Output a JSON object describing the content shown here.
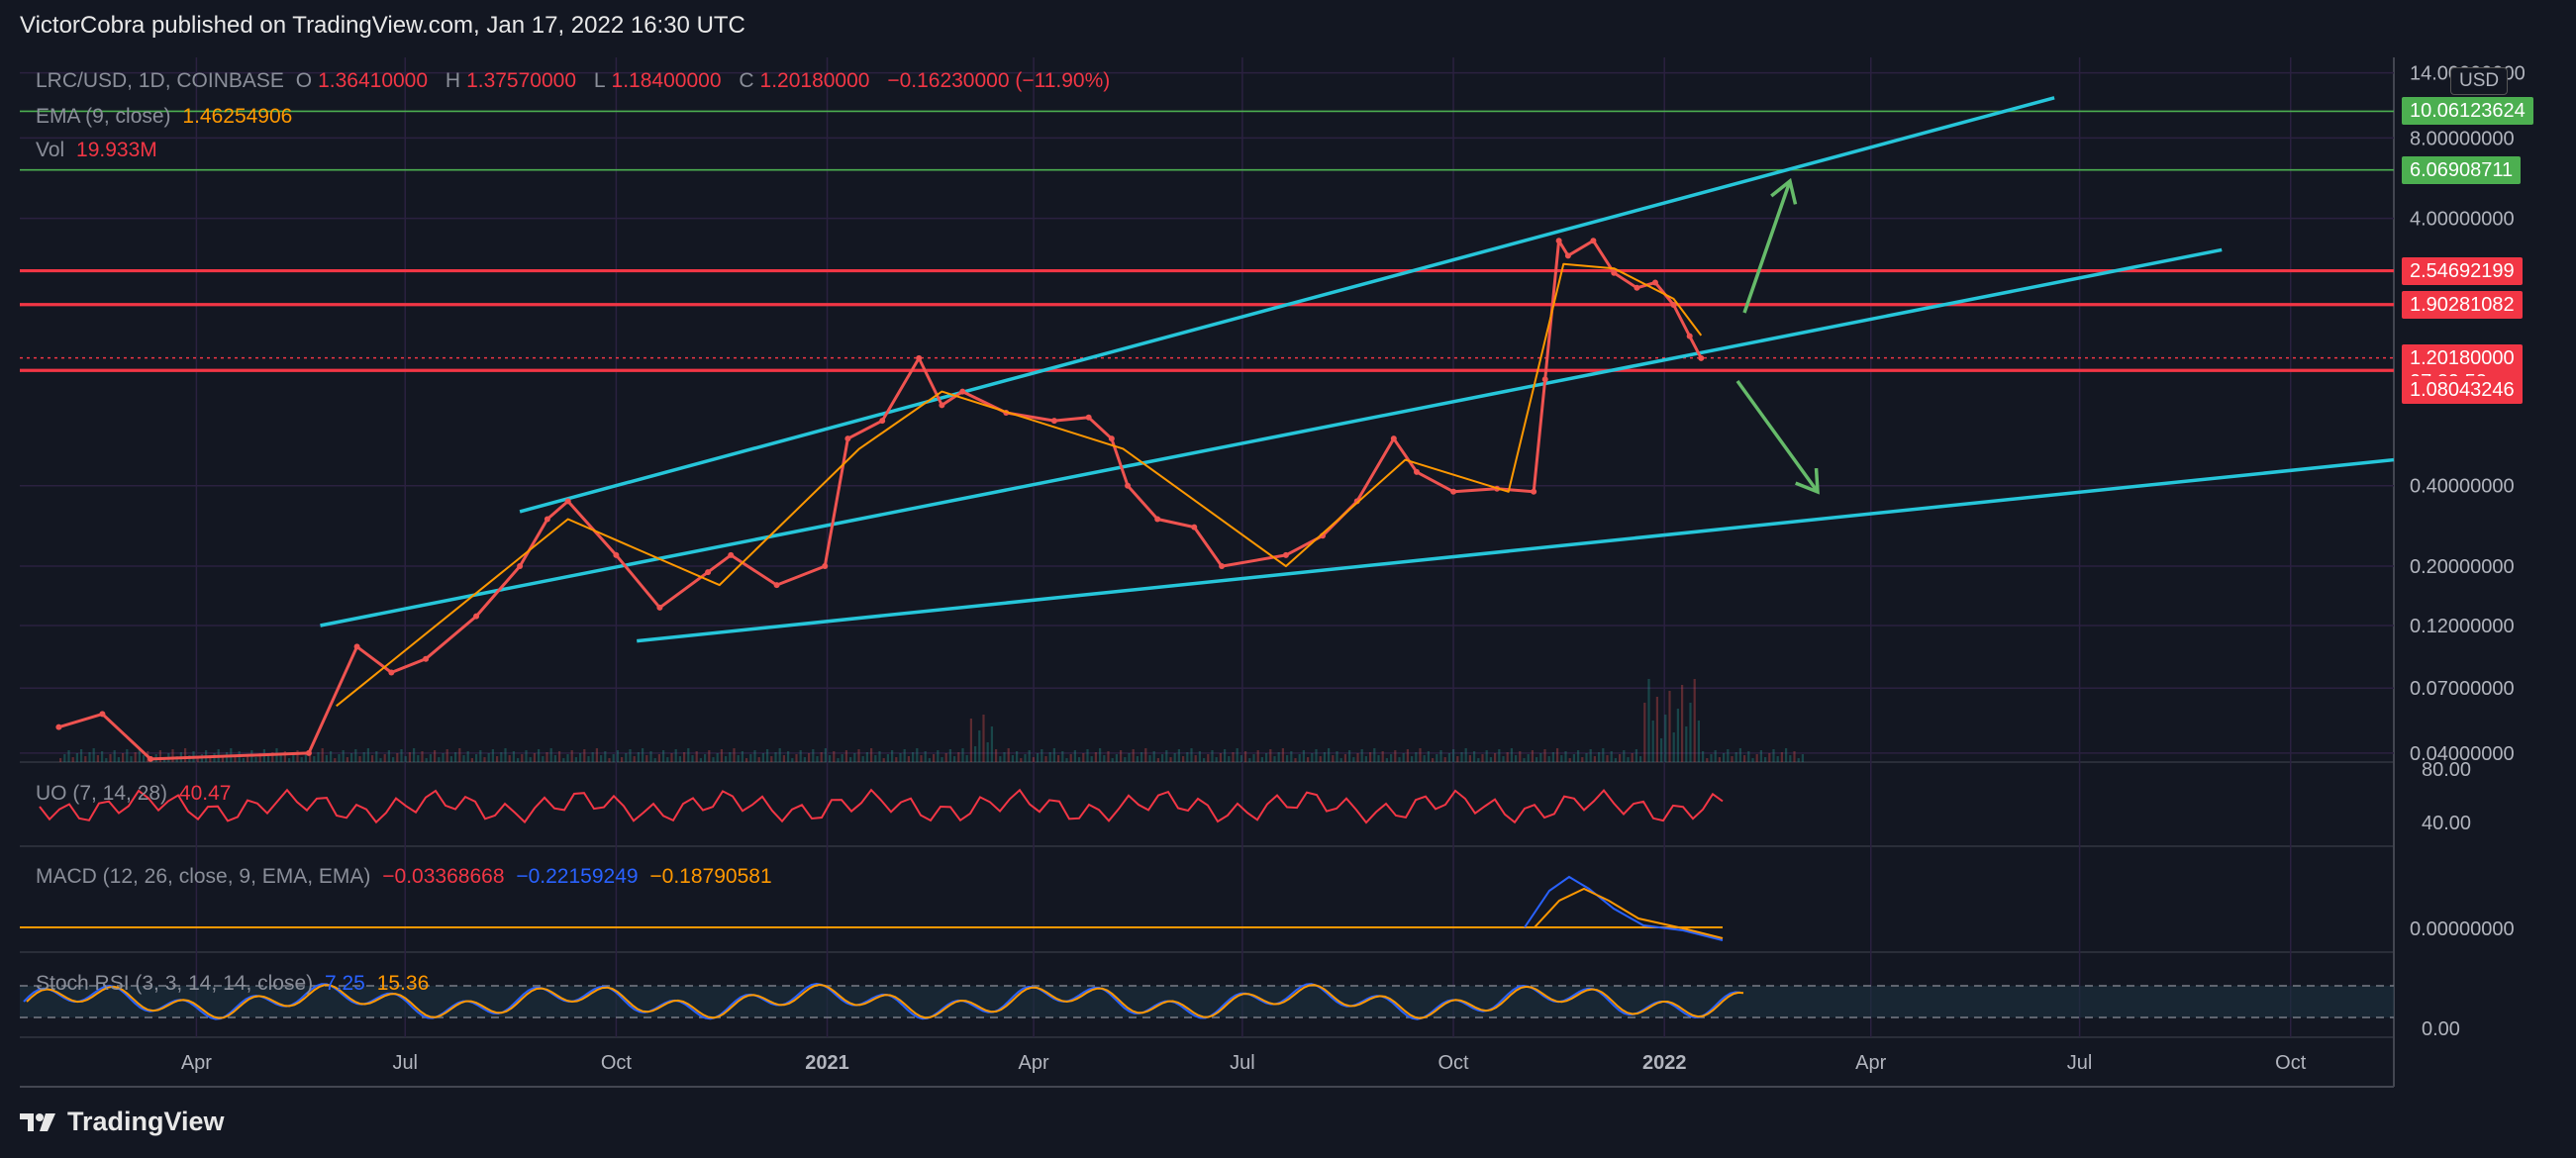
{
  "header": "VictorCobra published on TradingView.com, Jan 17, 2022 16:30 UTC",
  "footer": {
    "brand": "TradingView",
    "logo_icon": "tradingview-logo-icon"
  },
  "quote_currency": "USD",
  "legend": {
    "symbol": "LRC/USD, 1D, COINBASE",
    "ohlc": {
      "O": "1.36410000",
      "H": "1.37570000",
      "L": "1.18400000",
      "C": "1.20180000",
      "change": "−0.16230000 (−11.90%)"
    },
    "ema_label": "EMA (9, close)",
    "ema_value": "1.46254906",
    "vol_label": "Vol",
    "vol_value": "19.933M",
    "uo_label": "UO (7, 14, 28)",
    "uo_value": "40.47",
    "macd_label": "MACD (12, 26, close, 9, EMA, EMA)",
    "macd_values": [
      "−0.03368668",
      "−0.22159249",
      "−0.18790581"
    ],
    "stoch_label": "Stoch RSI (3, 3, 14, 14, close)",
    "stoch_values": [
      "7.25",
      "15.36"
    ]
  },
  "price_tags": [
    {
      "value": "10.06123624",
      "price": 10.06,
      "color": "#4caf50"
    },
    {
      "value": "6.06908711",
      "price": 6.069,
      "color": "#4caf50"
    },
    {
      "value": "2.54692199",
      "price": 2.547,
      "color": "#f23645"
    },
    {
      "value": "1.90281082",
      "price": 1.903,
      "color": "#f23645"
    },
    {
      "value": "1.20180000",
      "sub": "07:29:52",
      "price": 1.2018,
      "color": "#f23645"
    },
    {
      "value": "1.08043246",
      "price": 1.08,
      "color": "#f23645"
    }
  ],
  "chart_data": {
    "type": "line",
    "scale": "log",
    "title": "LRC/USD, 1D, COINBASE",
    "y_ticks": [
      "14.00000000",
      "8.00000000",
      "4.00000000",
      "0.40000000",
      "0.20000000",
      "0.12000000",
      "0.07000000",
      "0.04000000"
    ],
    "y_tick_values": [
      14,
      8,
      4,
      0.4,
      0.2,
      0.12,
      0.07,
      0.04
    ],
    "x_ticks": [
      "Apr",
      "Jul",
      "Oct",
      "2021",
      "Apr",
      "Jul",
      "Oct",
      "2022",
      "Apr",
      "Jul",
      "Oct"
    ],
    "x_tick_dates": [
      "2020-04-01",
      "2020-07-01",
      "2020-10-01",
      "2021-01-01",
      "2021-04-01",
      "2021-07-01",
      "2021-10-01",
      "2022-01-01",
      "2022-04-01",
      "2022-07-01",
      "2022-10-01"
    ],
    "x_range": [
      "2020-01-15",
      "2022-11-15"
    ],
    "y_range": [
      0.037,
      16
    ],
    "series": [
      {
        "name": "LRC/USD",
        "color": "#ef5350",
        "x": [
          "2020-02-01",
          "2020-02-20",
          "2020-03-12",
          "2020-05-20",
          "2020-06-10",
          "2020-06-25",
          "2020-07-10",
          "2020-08-01",
          "2020-08-20",
          "2020-09-01",
          "2020-09-10",
          "2020-10-01",
          "2020-10-20",
          "2020-11-10",
          "2020-11-20",
          "2020-12-10",
          "2020-12-31",
          "2021-01-10",
          "2021-01-25",
          "2021-02-10",
          "2021-02-20",
          "2021-03-01",
          "2021-03-20",
          "2021-04-10",
          "2021-04-25",
          "2021-05-05",
          "2021-05-12",
          "2021-05-25",
          "2021-06-10",
          "2021-06-22",
          "2021-07-20",
          "2021-08-05",
          "2021-08-20",
          "2021-09-05",
          "2021-09-15",
          "2021-10-01",
          "2021-10-20",
          "2021-11-05",
          "2021-11-10",
          "2021-11-16",
          "2021-11-20",
          "2021-12-01",
          "2021-12-10",
          "2021-12-20",
          "2021-12-28",
          "2022-01-05",
          "2022-01-12",
          "2022-01-17"
        ],
        "values": [
          0.05,
          0.056,
          0.038,
          0.04,
          0.1,
          0.08,
          0.09,
          0.13,
          0.2,
          0.3,
          0.35,
          0.22,
          0.14,
          0.19,
          0.22,
          0.17,
          0.2,
          0.6,
          0.7,
          1.2,
          0.8,
          0.9,
          0.75,
          0.7,
          0.72,
          0.6,
          0.4,
          0.3,
          0.28,
          0.2,
          0.22,
          0.26,
          0.35,
          0.6,
          0.45,
          0.38,
          0.39,
          0.38,
          1.0,
          3.3,
          2.9,
          3.3,
          2.5,
          2.2,
          2.3,
          1.9,
          1.45,
          1.2
        ]
      },
      {
        "name": "EMA (9, close)",
        "color": "#ff9800",
        "x": [
          "2020-06-01",
          "2020-09-10",
          "2020-11-15",
          "2021-01-15",
          "2021-02-20",
          "2021-05-10",
          "2021-07-20",
          "2021-09-10",
          "2021-10-25",
          "2021-11-18",
          "2021-12-10",
          "2022-01-05",
          "2022-01-17"
        ],
        "values": [
          0.06,
          0.3,
          0.17,
          0.55,
          0.9,
          0.55,
          0.2,
          0.5,
          0.38,
          2.7,
          2.6,
          2.0,
          1.46
        ]
      }
    ],
    "indicators": [
      {
        "name": "UO (7, 14, 28)",
        "last": 40.47,
        "ticks": [
          "80.00",
          "40.00"
        ],
        "tick_values": [
          80,
          40
        ]
      },
      {
        "name": "MACD (12, 26, close, 9, EMA, EMA)",
        "last": [
          -0.03368668,
          -0.22159249,
          -0.18790581
        ],
        "ticks": [
          "0.00000000"
        ]
      },
      {
        "name": "Stoch RSI (3, 3, 14, 14, close)",
        "last": [
          7.25,
          15.36
        ],
        "ticks": [
          "0.00"
        ]
      }
    ]
  }
}
